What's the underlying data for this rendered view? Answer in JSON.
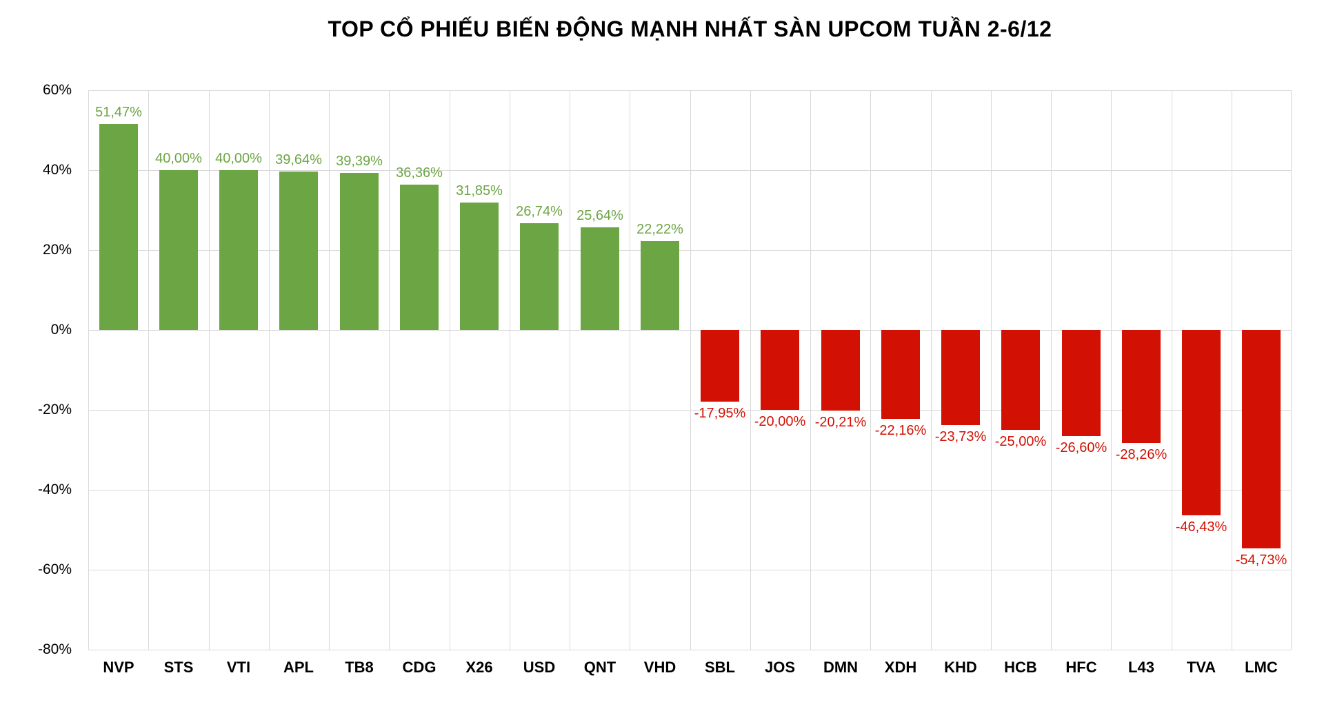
{
  "chart_data": {
    "type": "bar",
    "title": "TOP CỔ PHIẾU BIẾN ĐỘNG MẠNH NHẤT SÀN UPCOM TUẦN 2-6/12",
    "categories": [
      "NVP",
      "STS",
      "VTI",
      "APL",
      "TB8",
      "CDG",
      "X26",
      "USD",
      "QNT",
      "VHD",
      "SBL",
      "JOS",
      "DMN",
      "XDH",
      "KHD",
      "HCB",
      "HFC",
      "L43",
      "TVA",
      "LMC"
    ],
    "values": [
      51.47,
      40.0,
      40.0,
      39.64,
      39.39,
      36.36,
      31.85,
      26.74,
      25.64,
      22.22,
      -17.95,
      -20.0,
      -20.21,
      -22.16,
      -23.73,
      -25.0,
      -26.6,
      -28.26,
      -46.43,
      -54.73
    ],
    "value_labels": [
      "51,47%",
      "40,00%",
      "40,00%",
      "39,64%",
      "39,39%",
      "36,36%",
      "31,85%",
      "26,74%",
      "25,64%",
      "22,22%",
      "-17,95%",
      "-20,00%",
      "-20,21%",
      "-22,16%",
      "-23,73%",
      "-25,00%",
      "-26,60%",
      "-28,26%",
      "-46,43%",
      "-54,73%"
    ],
    "xlabel": "",
    "ylabel": "",
    "ylim": [
      -80,
      60
    ],
    "ytick_step": 20,
    "ytick_labels": [
      "60%",
      "40%",
      "20%",
      "0%",
      "-20%",
      "-40%",
      "-60%",
      "-80%"
    ],
    "grid": "both",
    "legend_position": "none",
    "colors": {
      "positive_bar": "#6CA544",
      "negative_bar": "#D21104",
      "positive_label": "#6CA544",
      "negative_label": "#D21104",
      "gridline": "#D9D9D9",
      "title_text": "#000000",
      "axis_text": "#000000"
    }
  }
}
